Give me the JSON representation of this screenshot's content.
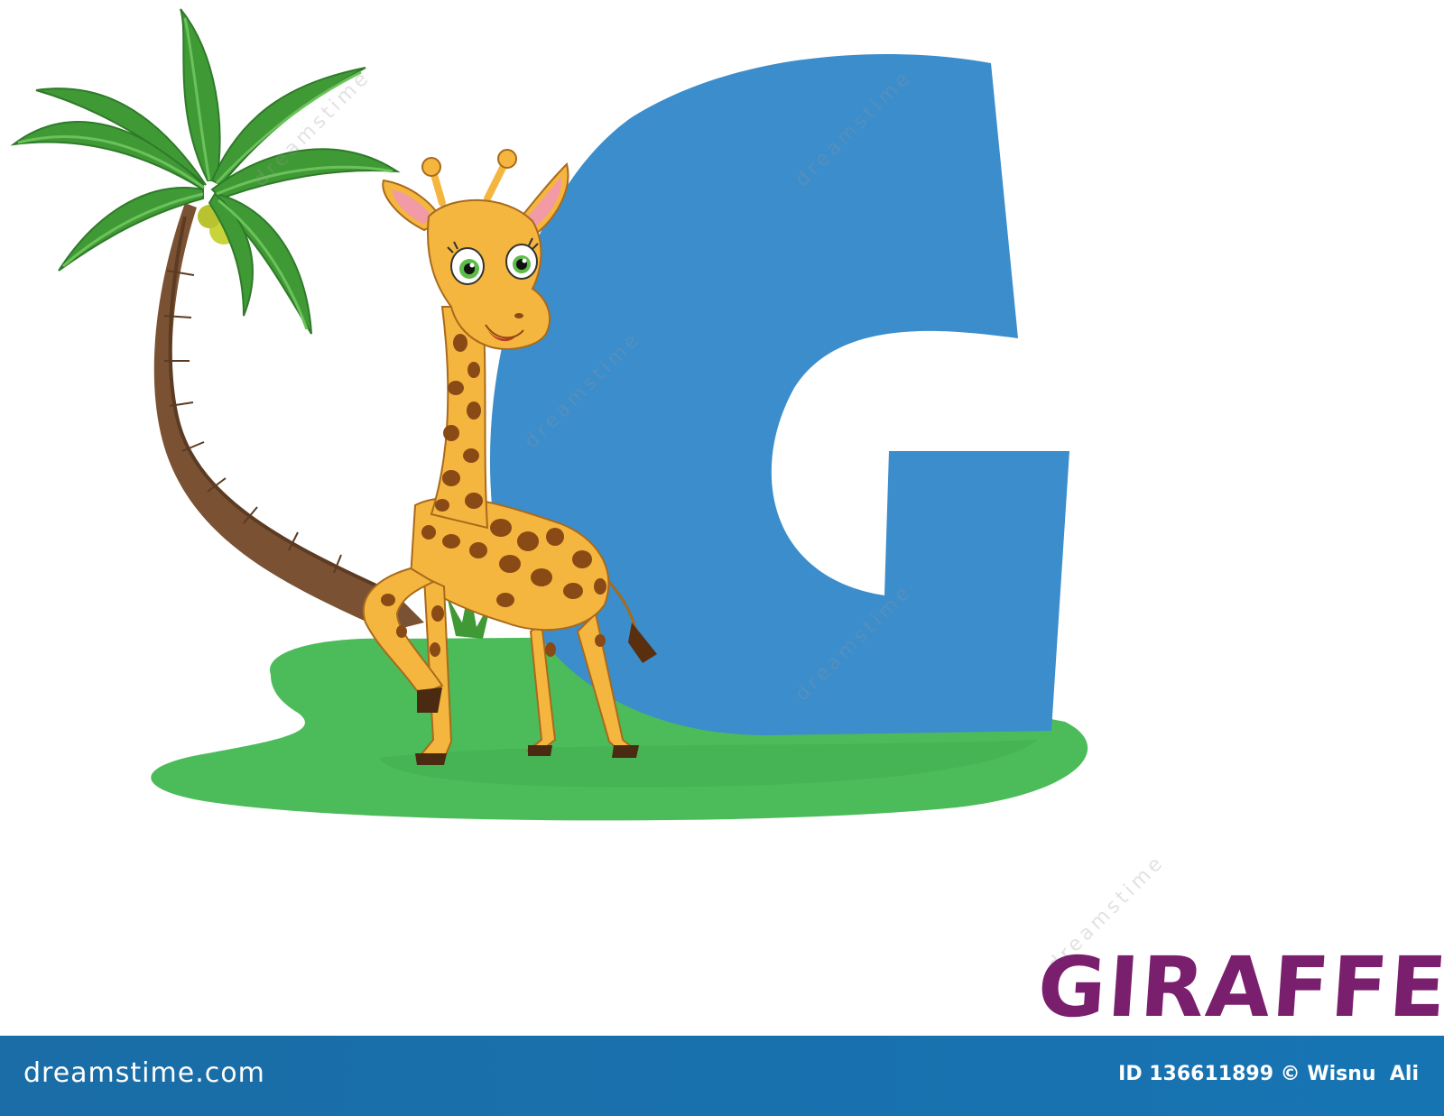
{
  "word": "GIRAFFE",
  "letter": "G",
  "watermark": "dreamstime",
  "footer": {
    "brand": "dreamstime.com",
    "id_text": "ID 136611899 © Wisnu  Ali"
  },
  "colors": {
    "letter_blue": "#3b8dcc",
    "grass_green": "#4cbb5a",
    "word_purple": "#7a1f6e",
    "footer_blue": "#1774b3",
    "giraffe_body": "#f5b63f",
    "giraffe_spots": "#8a4a16",
    "palm_leaf": "#3f9a36",
    "trunk": "#7a5233"
  }
}
